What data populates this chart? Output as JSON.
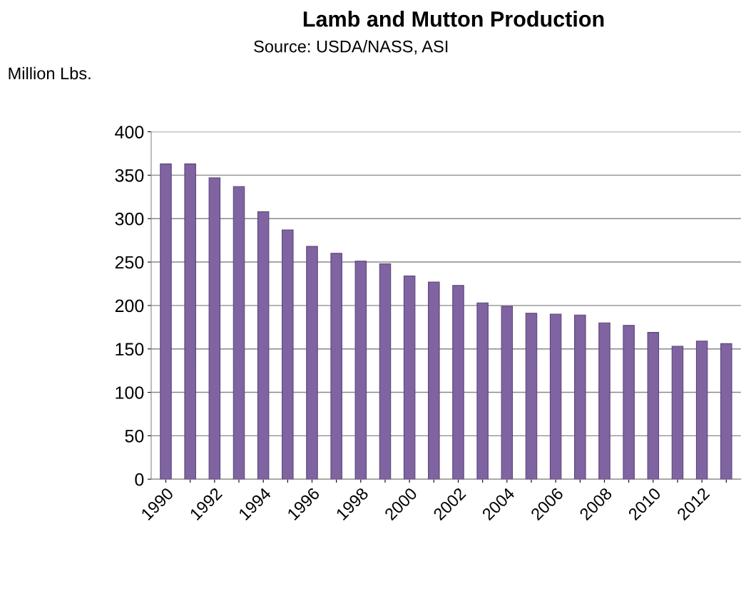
{
  "chart_data": {
    "type": "bar",
    "title": "Lamb and Mutton Production",
    "subtitle": "Source: USDA/NASS, ASI",
    "ylabel": "Million Lbs.",
    "categories": [
      "1990",
      null,
      "1992",
      null,
      "1994",
      null,
      "1996",
      null,
      "1998",
      null,
      "2000",
      null,
      "2002",
      null,
      "2004",
      null,
      "2006",
      null,
      "2008",
      null,
      "2010",
      null,
      "2012",
      null
    ],
    "values": [
      363,
      363,
      347,
      337,
      308,
      287,
      268,
      260,
      251,
      248,
      234,
      227,
      223,
      203,
      199,
      191,
      190,
      189,
      180,
      177,
      169,
      153,
      159,
      156
    ],
    "color": "#8064a2",
    "ylim": [
      0,
      400
    ],
    "yticks": [
      0,
      50,
      100,
      150,
      200,
      250,
      300,
      350,
      400
    ],
    "grid": "y"
  }
}
